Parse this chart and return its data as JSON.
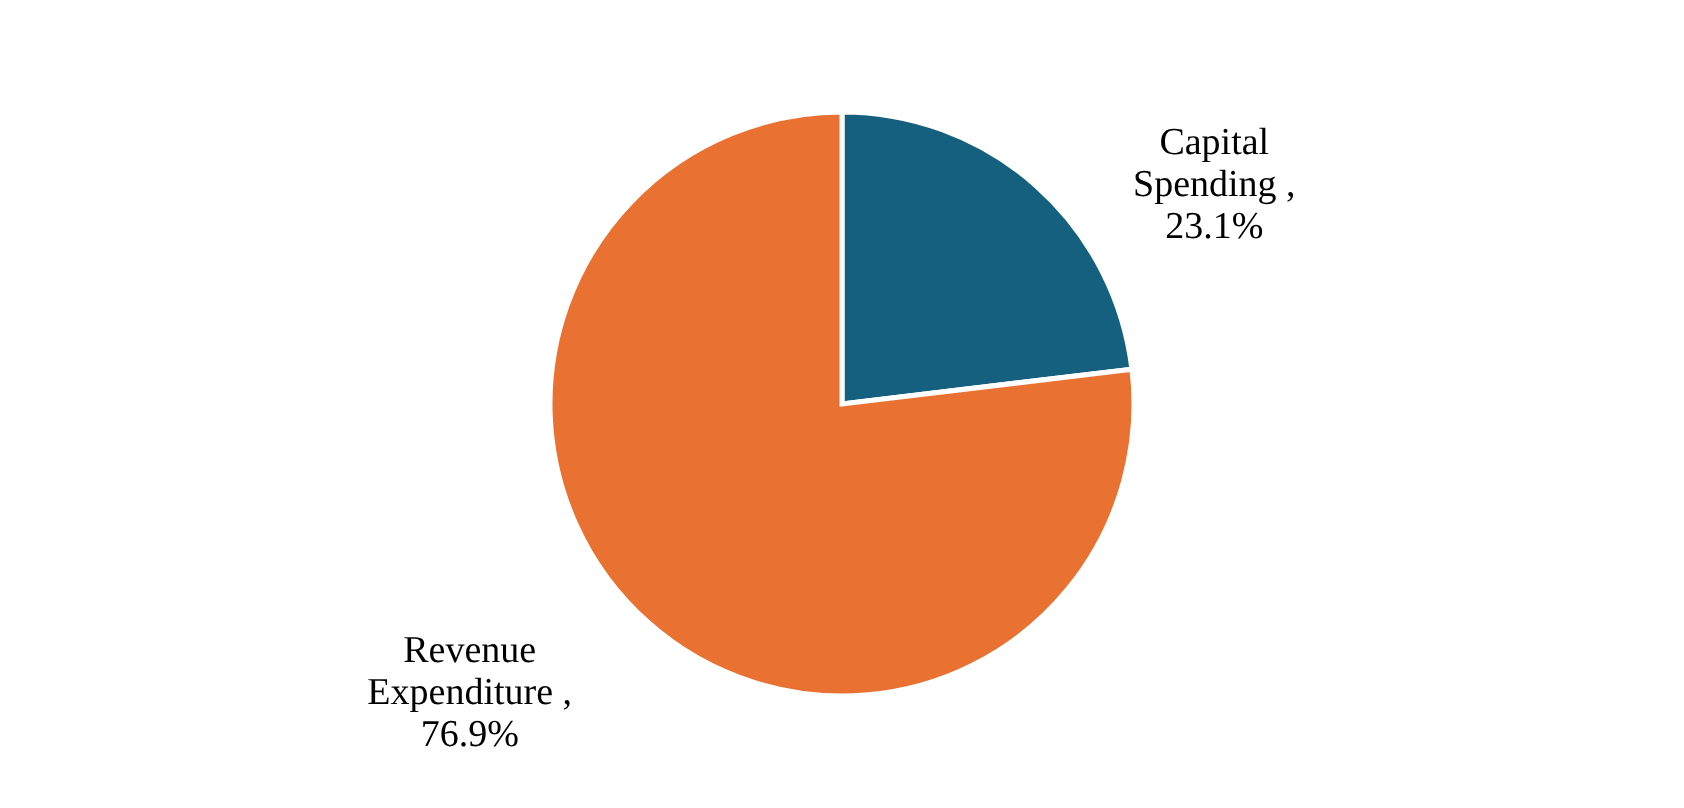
{
  "chart_data": {
    "type": "pie",
    "categories": [
      "Capital Spending",
      "Revenue Expenditure"
    ],
    "values": [
      23.1,
      76.9
    ],
    "colors": [
      "#15607f",
      "#e97132"
    ],
    "value_labels": [
      ", 23.1%",
      ", 76.9%"
    ],
    "legend": false
  }
}
